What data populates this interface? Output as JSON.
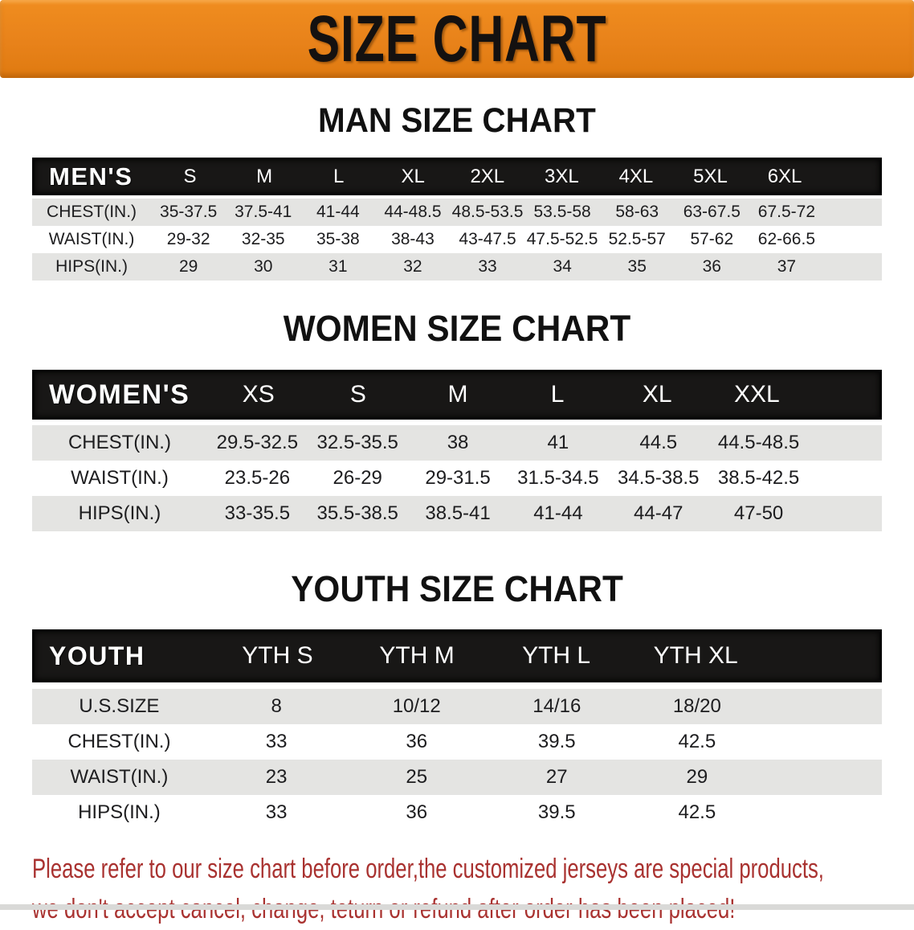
{
  "banner": {
    "title": "SIZE CHART"
  },
  "tables": {
    "men": {
      "title": "MAN SIZE CHART",
      "header": [
        "MEN'S",
        "S",
        "M",
        "L",
        "XL",
        "2XL",
        "3XL",
        "4XL",
        "5XL",
        "6XL"
      ],
      "rows": [
        {
          "label": "CHEST(IN.)",
          "values": [
            "35-37.5",
            "37.5-41",
            "41-44",
            "44-48.5",
            "48.5-53.5",
            "53.5-58",
            "58-63",
            "63-67.5",
            "67.5-72"
          ]
        },
        {
          "label": "WAIST(IN.)",
          "values": [
            "29-32",
            "32-35",
            "35-38",
            "38-43",
            "43-47.5",
            "47.5-52.5",
            "52.5-57",
            "57-62",
            "62-66.5"
          ]
        },
        {
          "label": "HIPS(IN.)",
          "values": [
            "29",
            "30",
            "31",
            "32",
            "33",
            "34",
            "35",
            "36",
            "37"
          ]
        }
      ]
    },
    "women": {
      "title": "WOMEN SIZE CHART",
      "header": [
        "WOMEN'S",
        "XS",
        "S",
        "M",
        "L",
        "XL",
        "XXL"
      ],
      "rows": [
        {
          "label": "CHEST(IN.)",
          "values": [
            "29.5-32.5",
            "32.5-35.5",
            "38",
            "41",
            "44.5",
            "44.5-48.5"
          ]
        },
        {
          "label": "WAIST(IN.)",
          "values": [
            "23.5-26",
            "26-29",
            "29-31.5",
            "31.5-34.5",
            "34.5-38.5",
            "38.5-42.5"
          ]
        },
        {
          "label": "HIPS(IN.)",
          "values": [
            "33-35.5",
            "35.5-38.5",
            "38.5-41",
            "41-44",
            "44-47",
            "47-50"
          ]
        }
      ]
    },
    "youth": {
      "title": "YOUTH SIZE CHART",
      "header": [
        "YOUTH",
        "YTH S",
        "YTH M",
        "YTH L",
        "YTH XL"
      ],
      "rows": [
        {
          "label": "U.S.SIZE",
          "values": [
            "8",
            "10/12",
            "14/16",
            "18/20"
          ]
        },
        {
          "label": "CHEST(IN.)",
          "values": [
            "33",
            "36",
            "39.5",
            "42.5"
          ]
        },
        {
          "label": "WAIST(IN.)",
          "values": [
            "23",
            "25",
            "27",
            "29"
          ]
        },
        {
          "label": "HIPS(IN.)",
          "values": [
            "33",
            "36",
            "39.5",
            "42.5"
          ]
        }
      ]
    }
  },
  "footer": {
    "line1": "Please refer to our size chart before order,the customized jerseys are special products,",
    "line2": "we don't accept cancel, change, teturn or refund after order has been placed!"
  },
  "colors": {
    "banner_orange": "#E8821A",
    "header_black": "#181716",
    "row_gray": "#E4E4E2",
    "footer_red": "#A93230"
  }
}
